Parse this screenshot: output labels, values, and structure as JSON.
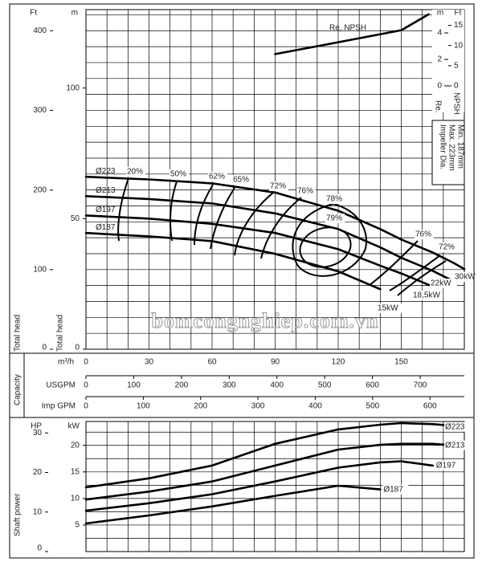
{
  "chart_data": [
    {
      "type": "line",
      "xlabel": "m³/h",
      "xlim": [
        0,
        180
      ],
      "xticks": [
        0,
        30,
        60,
        90,
        120,
        150
      ],
      "xgrid": [
        0,
        10,
        20,
        30,
        40,
        50,
        60,
        70,
        80,
        90,
        100,
        110,
        120,
        130,
        140,
        150,
        160,
        170,
        180
      ],
      "ylabel": "Total head",
      "yunit": "m",
      "ylim": [
        0,
        130
      ],
      "yticks": [
        0,
        50,
        100
      ],
      "ft_axis": {
        "title": "Total head",
        "unit": "Ft",
        "lim": [
          0,
          426.5
        ],
        "ticks": [
          0,
          100,
          200,
          300,
          400
        ],
        "grid": [
          0,
          20,
          40,
          60,
          80,
          100,
          120,
          140,
          160,
          180,
          200,
          220,
          240,
          260,
          280,
          300,
          320,
          340,
          360,
          380,
          400,
          420
        ]
      },
      "npsh_axis": {
        "title": "Re.",
        "unit": "m",
        "lim": [
          -19.9,
          5.76
        ],
        "ticks": [
          0,
          2,
          4
        ]
      },
      "npsh_ft_axis": {
        "title": "NPSH",
        "unit": "Ft",
        "lim": [
          -65.3,
          18.9
        ],
        "ticks": [
          0,
          5,
          10,
          15
        ]
      },
      "capacity_label": "Capacity",
      "usgpm_axis": {
        "label": "USGPM",
        "lim": [
          0,
          792.5
        ],
        "ticks": [
          0,
          100,
          200,
          300,
          400,
          500,
          600,
          700
        ]
      },
      "impgpm_axis": {
        "label": "Imp GPM",
        "lim": [
          0,
          659.9
        ],
        "ticks": [
          0,
          100,
          200,
          300,
          400,
          500,
          600
        ]
      },
      "grid": true,
      "x": [
        0,
        30,
        60,
        90,
        120,
        140,
        150,
        165,
        175,
        180
      ],
      "series": [
        {
          "name": "Ø223",
          "color": "#000000",
          "values": [
            66,
            65,
            63.5,
            60,
            53,
            46,
            42,
            37,
            33,
            30.7
          ]
        },
        {
          "name": "Ø213",
          "color": "#000000",
          "values": [
            58.6,
            57.5,
            55.8,
            52,
            46,
            39,
            35,
            30,
            26,
            null
          ]
        },
        {
          "name": "Ø197",
          "color": "#000000",
          "values": [
            51.2,
            50,
            48,
            44.5,
            38.3,
            32,
            29,
            24,
            null,
            null
          ]
        },
        {
          "name": "Ø187",
          "color": "#000000",
          "values": [
            44.5,
            43.2,
            41.4,
            36.5,
            29.8,
            23,
            null,
            null,
            null,
            null
          ]
        }
      ],
      "npsh": {
        "name": "Re, NPSH",
        "color": "#000000",
        "axis": "npsh",
        "x": [
          90,
          120,
          150,
          163
        ],
        "values": [
          2.4,
          3.3,
          4.2,
          5.4
        ]
      },
      "impeller_note": [
        "Impeller Dia.",
        "Max. 223mm",
        "Min. 187mm"
      ],
      "efficiency_labels": [
        "20%",
        "50%",
        "62%",
        "65%",
        "72%",
        "76%",
        "78%",
        "79%",
        "76%",
        "72%"
      ],
      "power_labels": [
        "15kW",
        "18,5kW",
        "22kW",
        "30kW"
      ],
      "watermark": "bomcongnghiep.com.vn"
    },
    {
      "type": "line",
      "ylabel": "Shaft power",
      "yunit": "kW",
      "xlim": [
        0,
        180
      ],
      "xgrid": [
        0,
        10,
        20,
        30,
        40,
        50,
        60,
        70,
        80,
        90,
        100,
        110,
        120,
        130,
        140,
        150,
        160,
        170,
        180
      ],
      "ylim": [
        0,
        24.5
      ],
      "yticks": [
        5,
        10,
        15,
        20
      ],
      "ygrid": [
        0,
        2.5,
        5,
        7.5,
        10,
        12.5,
        15,
        17.5,
        20,
        22.5
      ],
      "hp_axis": {
        "unit": "HP",
        "lim": [
          0,
          32.9
        ],
        "ticks": [
          0,
          10,
          20,
          30
        ]
      },
      "grid": true,
      "x": [
        0,
        30,
        60,
        90,
        120,
        140,
        150,
        165,
        175,
        180
      ],
      "series": [
        {
          "name": "Ø223",
          "color": "#000000",
          "values": [
            12.1,
            13.8,
            16.2,
            20.3,
            23,
            23.9,
            24.2,
            24,
            23.7,
            23.5
          ]
        },
        {
          "name": "Ø213",
          "color": "#000000",
          "values": [
            9.8,
            11.3,
            13.2,
            16.2,
            19.2,
            20.1,
            20.3,
            20.3,
            20,
            null
          ]
        },
        {
          "name": "Ø197",
          "color": "#000000",
          "values": [
            7.7,
            9.1,
            10.8,
            13.2,
            15.8,
            16.8,
            17,
            16.2,
            null,
            null
          ]
        },
        {
          "name": "Ø187",
          "color": "#000000",
          "values": [
            5.3,
            6.8,
            8.5,
            10.5,
            12.4,
            11.7,
            null,
            null,
            null,
            null
          ]
        }
      ]
    }
  ]
}
